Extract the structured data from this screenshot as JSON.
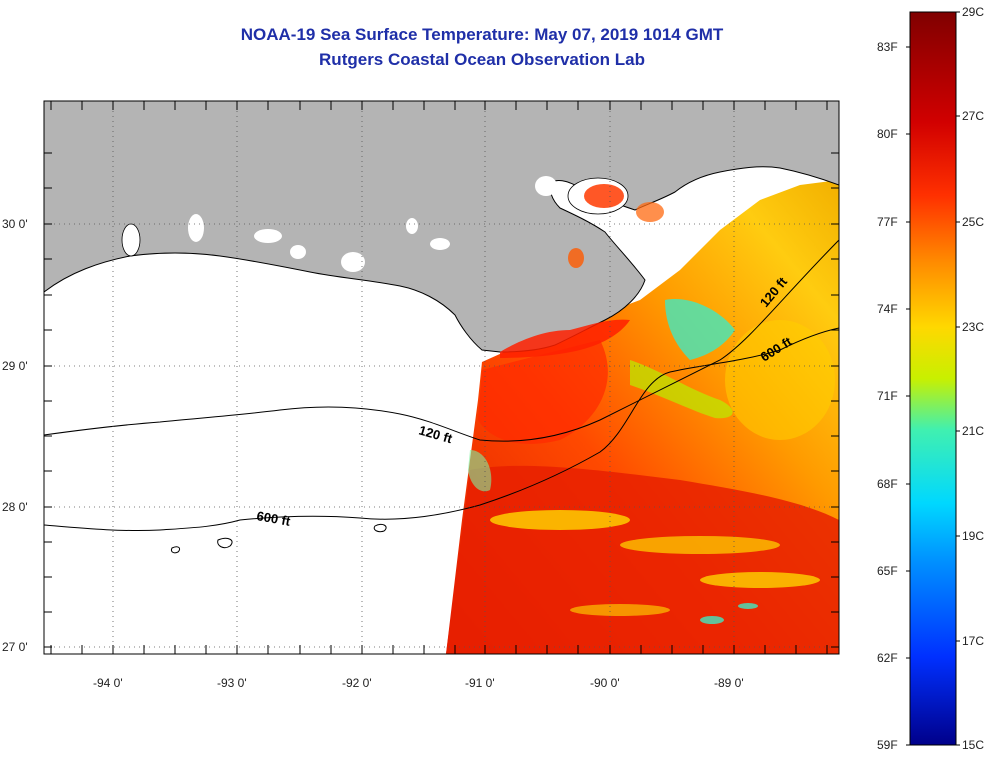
{
  "title": {
    "line1": "NOAA-19 Sea Surface Temperature:  May 07, 2019 1014 GMT",
    "line2": "Rutgers Coastal Ocean Observation Lab"
  },
  "axes": {
    "lat_labels": [
      "30 0'",
      "29 0'",
      "28 0'",
      "27 0'"
    ],
    "lon_labels": [
      "-94 0'",
      "-93 0'",
      "-92 0'",
      "-91 0'",
      "-90 0'",
      "-89 0'"
    ]
  },
  "contours": {
    "labels": [
      "120 ft",
      "600 ft",
      "120 ft",
      "600 ft"
    ]
  },
  "colorbar": {
    "fahrenheit": [
      "83F",
      "80F",
      "77F",
      "74F",
      "71F",
      "68F",
      "65F",
      "62F",
      "59F"
    ],
    "celsius": [
      "29C",
      "27C",
      "25C",
      "23C",
      "21C",
      "19C",
      "17C",
      "15C"
    ],
    "colors": [
      "#800000",
      "#d10000",
      "#ff3000",
      "#ff8a00",
      "#ffd800",
      "#c8f000",
      "#40f0b0",
      "#00d8ff",
      "#0090ff",
      "#0030ff",
      "#00008a"
    ]
  },
  "colors": {
    "land": "#b4b4b4",
    "no_data": "#ffffff",
    "title": "#1f2fa8"
  }
}
